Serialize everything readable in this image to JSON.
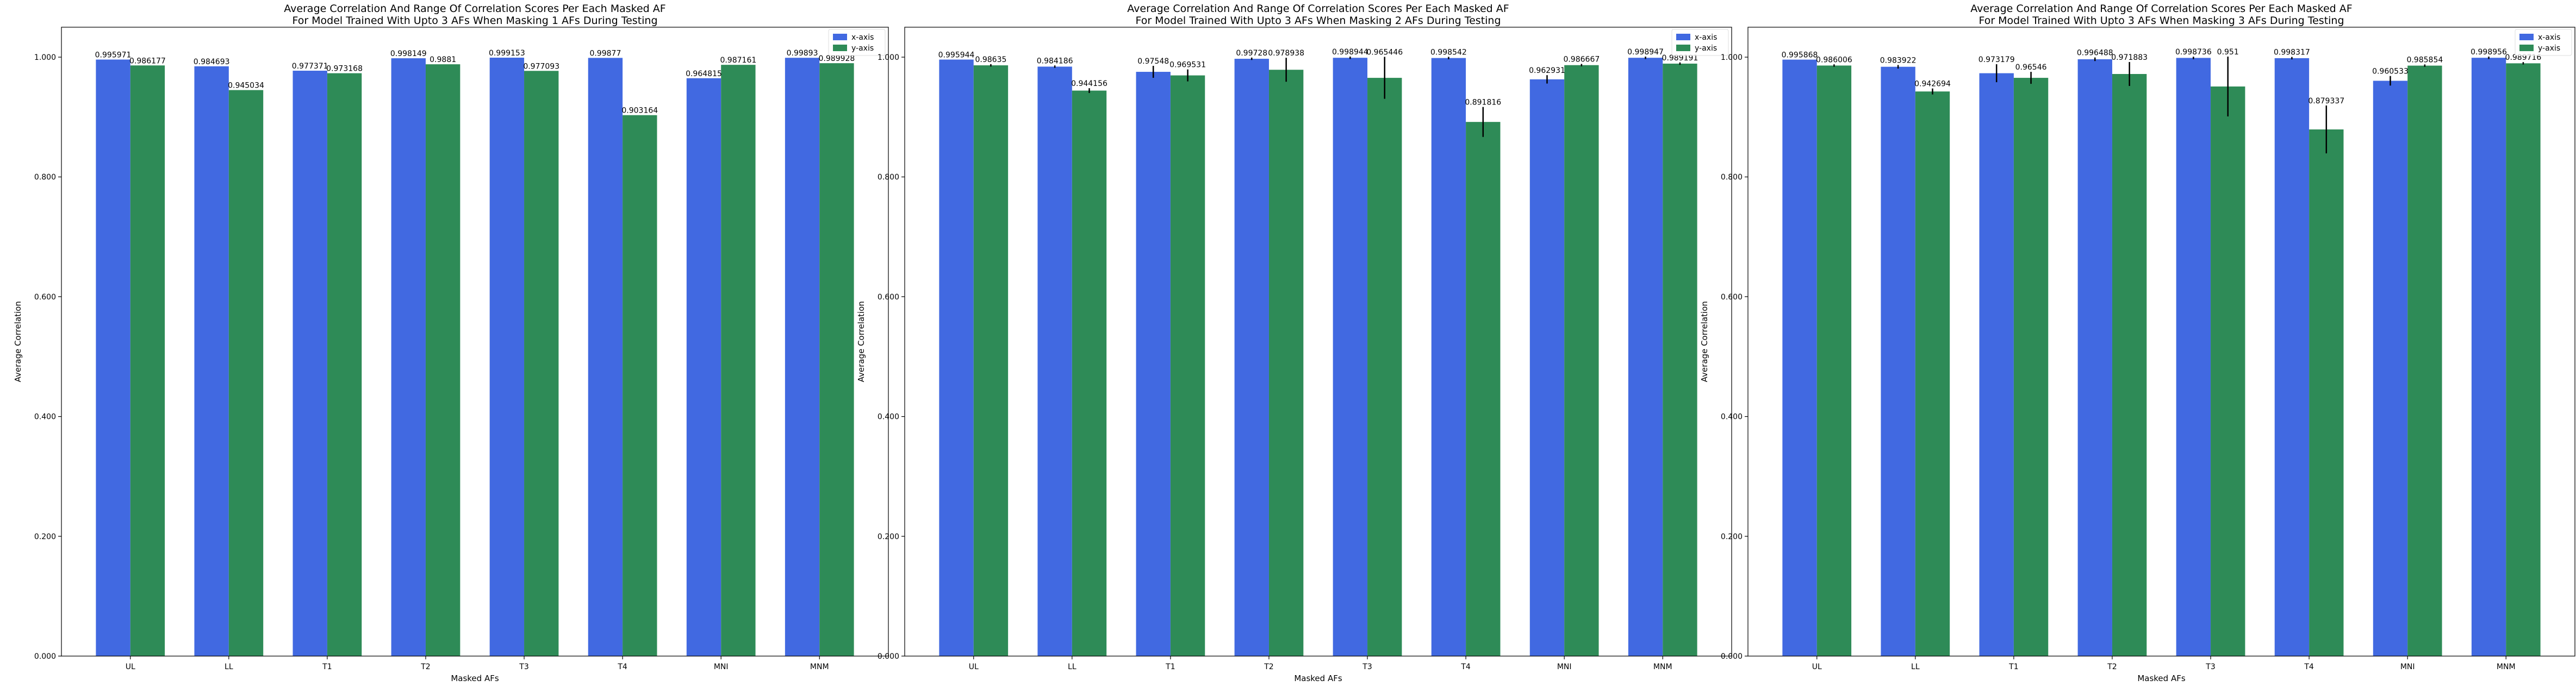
{
  "colors": {
    "x_axis": "#4169e1",
    "y_axis": "#2e8b57",
    "error_bar": "#000000"
  },
  "chart_data": [
    {
      "type": "bar",
      "title": "Average Correlation And Range Of Correlation Scores Per Each Masked AF",
      "subtitle": "For Model Trained With Upto 3 AFs When Masking 1 AFs During Testing",
      "xlabel": "Masked AFs",
      "ylabel": "Average Correlation",
      "ylim": [
        0,
        1.05
      ],
      "yticks": [
        "0.000",
        "0.200",
        "0.400",
        "0.600",
        "0.800",
        "1.000"
      ],
      "legend_position": "top-right",
      "categories": [
        "UL",
        "LL",
        "T1",
        "T2",
        "T3",
        "T4",
        "MNI",
        "MNM"
      ],
      "series": [
        {
          "name": "x-axis",
          "values": [
            0.995971,
            0.984693,
            0.977371,
            0.998149,
            0.999153,
            0.99877,
            0.964815,
            0.99893
          ],
          "labels": [
            "0.995971",
            "0.984693",
            "0.977371",
            "0.998149",
            "0.999153",
            "0.99877",
            "0.964815",
            "0.99893"
          ],
          "errors": [
            0,
            0,
            0,
            0,
            0,
            0,
            0,
            0
          ]
        },
        {
          "name": "y-axis",
          "values": [
            0.986177,
            0.945034,
            0.973168,
            0.9881,
            0.977093,
            0.903164,
            0.987161,
            0.989928
          ],
          "labels": [
            "0.986177",
            "0.945034",
            "0.973168",
            "0.9881",
            "0.977093",
            "0.903164",
            "0.987161",
            "0.989928"
          ],
          "errors": [
            0,
            0,
            0,
            0,
            0,
            0,
            0,
            0
          ]
        }
      ]
    },
    {
      "type": "bar",
      "title": "Average Correlation And Range Of Correlation Scores Per Each Masked AF",
      "subtitle": "For Model Trained With Upto 3 AFs When Masking 2 AFs During Testing",
      "xlabel": "Masked AFs",
      "ylabel": "Average Correlation",
      "ylim": [
        0,
        1.05
      ],
      "yticks": [
        "0.000",
        "0.200",
        "0.400",
        "0.600",
        "0.800",
        "1.000"
      ],
      "legend_position": "top-right",
      "categories": [
        "UL",
        "LL",
        "T1",
        "T2",
        "T3",
        "T4",
        "MNI",
        "MNM"
      ],
      "series": [
        {
          "name": "x-axis",
          "values": [
            0.995944,
            0.984186,
            0.97548,
            0.99728,
            0.998944,
            0.998542,
            0.962931,
            0.998947
          ],
          "labels": [
            "0.995944",
            "0.984186",
            "0.97548",
            "0.99728",
            "0.998944",
            "0.998542",
            "0.962931",
            "0.998947"
          ],
          "errors": [
            0,
            0.002,
            0.01,
            0.002,
            0.002,
            0.002,
            0.007,
            0.002
          ]
        },
        {
          "name": "y-axis",
          "values": [
            0.98635,
            0.944156,
            0.969531,
            0.978938,
            0.965446,
            0.891816,
            0.986667,
            0.989191
          ],
          "labels": [
            "0.98635",
            "0.944156",
            "0.969531",
            "0.978938",
            "0.965446",
            "0.891816",
            "0.986667",
            "0.989191"
          ],
          "errors": [
            0.002,
            0.004,
            0.01,
            0.02,
            0.035,
            0.025,
            0.002,
            0.002
          ]
        }
      ]
    },
    {
      "type": "bar",
      "title": "Average Correlation And Range Of Correlation Scores Per Each Masked AF",
      "subtitle": "For Model Trained With Upto 3 AFs When Masking 3 AFs During Testing",
      "xlabel": "Masked AFs",
      "ylabel": "Average Correlation",
      "ylim": [
        0,
        1.05
      ],
      "yticks": [
        "0.000",
        "0.200",
        "0.400",
        "0.600",
        "0.800",
        "1.000"
      ],
      "legend_position": "top-right",
      "categories": [
        "UL",
        "LL",
        "T1",
        "T2",
        "T3",
        "T4",
        "MNI",
        "MNM"
      ],
      "series": [
        {
          "name": "x-axis",
          "values": [
            0.995868,
            0.983922,
            0.973179,
            0.996488,
            0.998736,
            0.998317,
            0.960533,
            0.998956
          ],
          "labels": [
            "0.995868",
            "0.983922",
            "0.973179",
            "0.996488",
            "0.998736",
            "0.998317",
            "0.960533",
            "0.998956"
          ],
          "errors": [
            0,
            0.003,
            0.015,
            0.003,
            0.002,
            0.002,
            0.008,
            0.002
          ]
        },
        {
          "name": "y-axis",
          "values": [
            0.986006,
            0.942694,
            0.96546,
            0.971883,
            0.951,
            0.879337,
            0.985854,
            0.989716
          ],
          "labels": [
            "0.986006",
            "0.942694",
            "0.96546",
            "0.971883",
            "0.951",
            "0.879337",
            "0.985854",
            "0.989716"
          ],
          "errors": [
            0.002,
            0.005,
            0.01,
            0.02,
            0.05,
            0.04,
            0.002,
            0.002
          ]
        }
      ]
    }
  ]
}
